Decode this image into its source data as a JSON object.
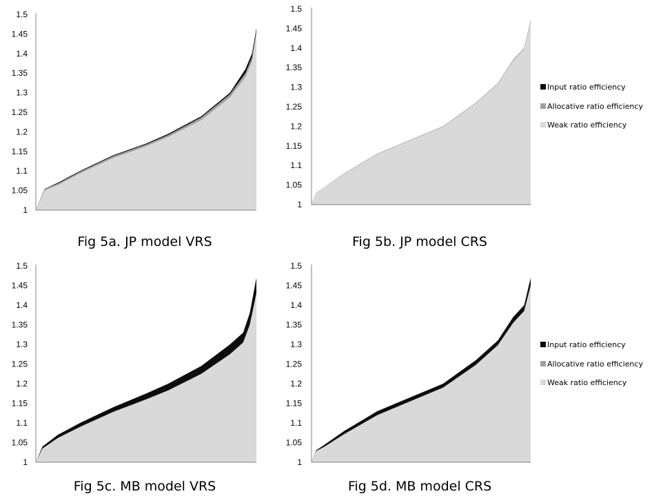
{
  "colors": {
    "input": "#0d0d0d",
    "allocative": "#a0a0a0",
    "weak": "#d9d9d9",
    "axis": "#808080"
  },
  "legend": {
    "input": "Input ratio efficiency",
    "allocative": "Allocative ratio efficiency",
    "weak": "Weak ratio efficiency"
  },
  "chart_data": [
    {
      "type": "area",
      "title": "Fig 5a.  JP model VRS",
      "yticks": [
        "1",
        "1.05",
        "1.1",
        "1.15",
        "1.2",
        "1.25",
        "1.3",
        "1.35",
        "1.4",
        "1.45",
        "1.5"
      ],
      "ylim": [
        1,
        1.5
      ],
      "series": [
        {
          "name": "Input ratio efficiency",
          "curve": [
            [
              0,
              1.0
            ],
            [
              0.04,
              1.055
            ],
            [
              0.1,
              1.07
            ],
            [
              0.2,
              1.1
            ],
            [
              0.35,
              1.14
            ],
            [
              0.5,
              1.17
            ],
            [
              0.6,
              1.195
            ],
            [
              0.75,
              1.24
            ],
            [
              0.88,
              1.3
            ],
            [
              0.95,
              1.36
            ],
            [
              0.98,
              1.4
            ],
            [
              1,
              1.465
            ]
          ]
        },
        {
          "name": "Allocative ratio efficiency",
          "curve": [
            [
              0,
              1.0
            ],
            [
              0.04,
              1.055
            ],
            [
              0.1,
              1.068
            ],
            [
              0.2,
              1.098
            ],
            [
              0.35,
              1.138
            ],
            [
              0.5,
              1.168
            ],
            [
              0.6,
              1.192
            ],
            [
              0.75,
              1.237
            ],
            [
              0.88,
              1.296
            ],
            [
              0.95,
              1.35
            ],
            [
              0.98,
              1.39
            ],
            [
              1,
              1.46
            ]
          ]
        },
        {
          "name": "Weak ratio efficiency",
          "curve": [
            [
              0,
              1.0
            ],
            [
              0.04,
              1.05
            ],
            [
              0.1,
              1.064
            ],
            [
              0.2,
              1.094
            ],
            [
              0.35,
              1.133
            ],
            [
              0.5,
              1.163
            ],
            [
              0.6,
              1.187
            ],
            [
              0.75,
              1.23
            ],
            [
              0.88,
              1.288
            ],
            [
              0.95,
              1.34
            ],
            [
              0.98,
              1.38
            ],
            [
              1,
              1.45
            ]
          ]
        }
      ]
    },
    {
      "type": "area",
      "title": "Fig 5b.  JP model CRS",
      "yticks": [
        "1",
        "1.05",
        "1.1",
        "1.15",
        "1.2",
        "1.25",
        "1.3",
        "1.35",
        "1.4",
        "1.45",
        "1.5"
      ],
      "ylim": [
        1,
        1.5
      ],
      "series": [
        {
          "name": "Input ratio efficiency",
          "curve": [
            [
              0,
              1.0
            ],
            [
              0.02,
              1.03
            ],
            [
              0.06,
              1.045
            ],
            [
              0.15,
              1.08
            ],
            [
              0.3,
              1.13
            ],
            [
              0.45,
              1.165
            ],
            [
              0.6,
              1.2
            ],
            [
              0.75,
              1.26
            ],
            [
              0.85,
              1.31
            ],
            [
              0.92,
              1.37
            ],
            [
              0.97,
              1.4
            ],
            [
              1,
              1.47
            ]
          ]
        },
        {
          "name": "Allocative ratio efficiency",
          "curve": [
            [
              0,
              1.0
            ],
            [
              0.02,
              1.03
            ],
            [
              0.06,
              1.045
            ],
            [
              0.15,
              1.08
            ],
            [
              0.3,
              1.13
            ],
            [
              0.45,
              1.165
            ],
            [
              0.6,
              1.2
            ],
            [
              0.75,
              1.26
            ],
            [
              0.85,
              1.31
            ],
            [
              0.92,
              1.37
            ],
            [
              0.97,
              1.4
            ],
            [
              1,
              1.47
            ]
          ]
        },
        {
          "name": "Weak ratio efficiency",
          "curve": [
            [
              0,
              1.0
            ],
            [
              0.02,
              1.03
            ],
            [
              0.06,
              1.045
            ],
            [
              0.15,
              1.079
            ],
            [
              0.3,
              1.129
            ],
            [
              0.45,
              1.164
            ],
            [
              0.6,
              1.199
            ],
            [
              0.75,
              1.259
            ],
            [
              0.85,
              1.309
            ],
            [
              0.92,
              1.368
            ],
            [
              0.97,
              1.398
            ],
            [
              1,
              1.467
            ]
          ]
        }
      ]
    },
    {
      "type": "area",
      "title": "Fig 5c.  MB model VRS",
      "yticks": [
        "1",
        "1.05",
        "1.1",
        "1.15",
        "1.2",
        "1.25",
        "1.3",
        "1.35",
        "1.4",
        "1.45",
        "1.5"
      ],
      "ylim": [
        1,
        1.5
      ],
      "series": [
        {
          "name": "Input ratio efficiency",
          "curve": [
            [
              0,
              1.0
            ],
            [
              0.03,
              1.04
            ],
            [
              0.1,
              1.07
            ],
            [
              0.2,
              1.1
            ],
            [
              0.35,
              1.14
            ],
            [
              0.5,
              1.175
            ],
            [
              0.6,
              1.2
            ],
            [
              0.75,
              1.245
            ],
            [
              0.88,
              1.3
            ],
            [
              0.94,
              1.33
            ],
            [
              0.97,
              1.38
            ],
            [
              1,
              1.47
            ]
          ]
        },
        {
          "name": "Allocative ratio efficiency",
          "curve": [
            [
              0,
              1.0
            ],
            [
              0.03,
              1.035
            ],
            [
              0.1,
              1.062
            ],
            [
              0.2,
              1.09
            ],
            [
              0.35,
              1.128
            ],
            [
              0.5,
              1.16
            ],
            [
              0.6,
              1.183
            ],
            [
              0.75,
              1.225
            ],
            [
              0.88,
              1.275
            ],
            [
              0.94,
              1.305
            ],
            [
              0.97,
              1.35
            ],
            [
              1,
              1.43
            ]
          ]
        },
        {
          "name": "Weak ratio efficiency",
          "curve": [
            [
              0,
              1.0
            ],
            [
              0.03,
              1.035
            ],
            [
              0.1,
              1.062
            ],
            [
              0.2,
              1.09
            ],
            [
              0.35,
              1.128
            ],
            [
              0.5,
              1.16
            ],
            [
              0.6,
              1.183
            ],
            [
              0.75,
              1.225
            ],
            [
              0.88,
              1.275
            ],
            [
              0.94,
              1.305
            ],
            [
              0.97,
              1.35
            ],
            [
              1,
              1.43
            ]
          ]
        }
      ]
    },
    {
      "type": "area",
      "title": "Fig 5d.  MB model CRS",
      "yticks": [
        "1",
        "1.05",
        "1.1",
        "1.15",
        "1.2",
        "1.25",
        "1.3",
        "1.35",
        "1.4",
        "1.45",
        "1.5"
      ],
      "ylim": [
        1,
        1.5
      ],
      "series": [
        {
          "name": "Input ratio efficiency",
          "curve": [
            [
              0,
              1.0
            ],
            [
              0.02,
              1.03
            ],
            [
              0.06,
              1.045
            ],
            [
              0.15,
              1.08
            ],
            [
              0.3,
              1.13
            ],
            [
              0.45,
              1.165
            ],
            [
              0.6,
              1.2
            ],
            [
              0.75,
              1.26
            ],
            [
              0.85,
              1.31
            ],
            [
              0.92,
              1.37
            ],
            [
              0.97,
              1.4
            ],
            [
              1,
              1.47
            ]
          ]
        },
        {
          "name": "Allocative ratio efficiency",
          "curve": [
            [
              0,
              1.0
            ],
            [
              0.02,
              1.028
            ],
            [
              0.06,
              1.04
            ],
            [
              0.15,
              1.072
            ],
            [
              0.3,
              1.12
            ],
            [
              0.45,
              1.155
            ],
            [
              0.6,
              1.19
            ],
            [
              0.75,
              1.248
            ],
            [
              0.85,
              1.298
            ],
            [
              0.92,
              1.355
            ],
            [
              0.97,
              1.385
            ],
            [
              1,
              1.45
            ]
          ]
        },
        {
          "name": "Weak ratio efficiency",
          "curve": [
            [
              0,
              1.0
            ],
            [
              0.02,
              1.028
            ],
            [
              0.06,
              1.04
            ],
            [
              0.15,
              1.072
            ],
            [
              0.3,
              1.12
            ],
            [
              0.45,
              1.155
            ],
            [
              0.6,
              1.19
            ],
            [
              0.75,
              1.248
            ],
            [
              0.85,
              1.298
            ],
            [
              0.92,
              1.355
            ],
            [
              0.97,
              1.385
            ],
            [
              1,
              1.45
            ]
          ]
        }
      ]
    }
  ]
}
